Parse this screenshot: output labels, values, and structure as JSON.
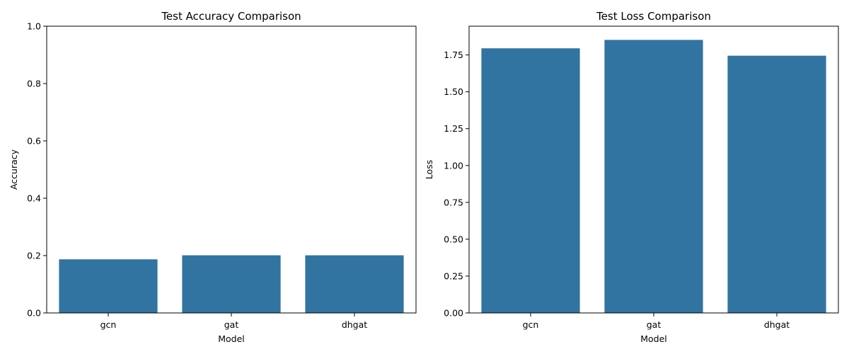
{
  "chart_data": [
    {
      "type": "bar",
      "title": "Test Accuracy Comparison",
      "xlabel": "Model",
      "ylabel": "Accuracy",
      "categories": [
        "gcn",
        "gat",
        "dhgat"
      ],
      "values": [
        0.187,
        0.201,
        0.201
      ],
      "ylim": [
        0,
        1.0
      ],
      "yticks": [
        "0.0",
        "0.2",
        "0.4",
        "0.6",
        "0.8",
        "1.0"
      ],
      "ytick_values": [
        0,
        0.2,
        0.4,
        0.6,
        0.8,
        1.0
      ],
      "bar_color": "#3274a1",
      "grid": false
    },
    {
      "type": "bar",
      "title": "Test Loss Comparison",
      "xlabel": "Model",
      "ylabel": "Loss",
      "categories": [
        "gcn",
        "gat",
        "dhgat"
      ],
      "values": [
        1.795,
        1.852,
        1.745
      ],
      "ylim": [
        0,
        1.945
      ],
      "yticks": [
        "0.00",
        "0.25",
        "0.50",
        "0.75",
        "1.00",
        "1.25",
        "1.50",
        "1.75"
      ],
      "ytick_values": [
        0,
        0.25,
        0.5,
        0.75,
        1.0,
        1.25,
        1.5,
        1.75
      ],
      "bar_color": "#3274a1",
      "grid": false
    }
  ]
}
